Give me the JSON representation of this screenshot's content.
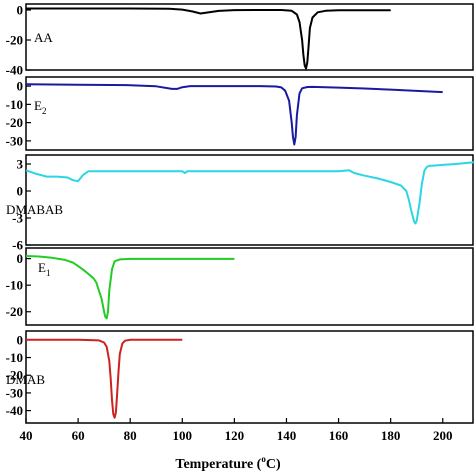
{
  "chart_data": {
    "type": "line",
    "xlabel": "Temperature (",
    "xlabel_sup": "o",
    "xlabel_end": "C)",
    "xlim": [
      40,
      212
    ],
    "x_ticks": [
      40,
      60,
      80,
      100,
      120,
      140,
      160,
      180,
      200
    ],
    "grid": false,
    "panels": [
      {
        "label": "AA",
        "color": "#000000",
        "ylim": [
          -40,
          4
        ],
        "y_ticks": [
          0,
          -20,
          -40
        ],
        "y_tick_labels": [
          "0",
          "-20",
          "-40"
        ],
        "x": [
          40,
          60,
          80,
          95,
          100,
          104,
          107,
          110,
          114,
          120,
          130,
          138,
          142,
          144,
          145,
          146,
          146.5,
          147,
          147.5,
          148,
          148.5,
          149,
          150,
          152,
          155,
          160,
          170,
          180
        ],
        "y": [
          1,
          1,
          1,
          0.8,
          0.3,
          -1,
          -2.3,
          -1.6,
          -0.6,
          -0.1,
          0,
          0,
          -0.5,
          -3,
          -8,
          -20,
          -30,
          -37,
          -39,
          -35,
          -24,
          -12,
          -5,
          -1.5,
          -0.5,
          -0.2,
          -0.2,
          -0.2
        ]
      },
      {
        "label": "E",
        "label_sub": "2",
        "color": "#1a1aa0",
        "ylim": [
          -35,
          5
        ],
        "y_ticks": [
          0,
          -10,
          -20,
          -30
        ],
        "y_tick_labels": [
          "0",
          "-10",
          "-20",
          "-30"
        ],
        "x": [
          40,
          60,
          80,
          90,
          96,
          98,
          100,
          103,
          110,
          120,
          130,
          136,
          138,
          139.5,
          141,
          142,
          142.5,
          143,
          143.5,
          144,
          145,
          146,
          148,
          150,
          160,
          170,
          180,
          190,
          200
        ],
        "y": [
          1,
          0.8,
          0.5,
          -0.1,
          -1.5,
          -1.5,
          -0.6,
          0,
          0,
          0,
          0,
          -0.2,
          -0.7,
          -2.5,
          -8,
          -20,
          -28,
          -32,
          -28,
          -16,
          -4,
          -1.2,
          -0.5,
          -0.4,
          -0.8,
          -1.3,
          -1.9,
          -2.6,
          -3.3
        ]
      },
      {
        "label": "DMABAB",
        "color": "#2ad6e4",
        "ylim": [
          -6,
          4
        ],
        "y_ticks": [
          3,
          0,
          -3,
          -6
        ],
        "y_tick_labels": [
          "3",
          "0",
          "-3",
          "-6"
        ],
        "x": [
          40,
          44,
          48,
          52,
          56,
          58,
          60,
          62,
          64,
          70,
          80,
          90,
          100,
          101,
          102,
          110,
          130,
          150,
          160,
          164,
          166,
          170,
          175,
          180,
          184,
          186,
          187,
          188,
          189,
          189.5,
          190,
          191,
          192,
          193,
          194,
          195,
          196,
          200,
          205,
          212
        ],
        "y": [
          2.3,
          1.9,
          1.6,
          1.6,
          1.5,
          1.2,
          1.1,
          1.8,
          2.2,
          2.2,
          2.2,
          2.2,
          2.2,
          2.0,
          2.2,
          2.2,
          2.2,
          2.2,
          2.2,
          2.3,
          2.0,
          1.7,
          1.4,
          1.0,
          0.6,
          0.0,
          -1.0,
          -2.3,
          -3.4,
          -3.6,
          -3.3,
          -1.5,
          0.8,
          2.3,
          2.7,
          2.8,
          2.8,
          2.9,
          3.0,
          3.2
        ]
      },
      {
        "label": "E",
        "label_sub": "1",
        "color": "#22cc22",
        "ylim": [
          -25,
          4
        ],
        "y_ticks": [
          0,
          -10,
          -20
        ],
        "y_tick_labels": [
          "0",
          "-10",
          "-20"
        ],
        "x": [
          40,
          45,
          50,
          55,
          58,
          60,
          62,
          64,
          66,
          67,
          68,
          69,
          70,
          70.5,
          71,
          71.5,
          72,
          73,
          74,
          76,
          80,
          90,
          100,
          110,
          120
        ],
        "y": [
          1,
          0.8,
          0.3,
          -0.5,
          -1.5,
          -2.8,
          -4.2,
          -5.8,
          -7.5,
          -9,
          -12,
          -15,
          -20,
          -22,
          -22.5,
          -20,
          -12,
          -4,
          -1,
          -0.3,
          -0.1,
          -0.1,
          -0.1,
          -0.1,
          -0.1
        ]
      },
      {
        "label": "DMAB",
        "color": "#cc2222",
        "ylim": [
          -47,
          5
        ],
        "y_ticks": [
          0,
          -10,
          -20,
          -30,
          -40
        ],
        "y_tick_labels": [
          "0",
          "-10",
          "-20",
          "-30",
          "-40"
        ],
        "x": [
          40,
          60,
          68,
          70,
          71,
          72,
          72.5,
          73,
          73.5,
          74,
          74.5,
          75,
          75.5,
          76,
          77,
          78,
          80,
          90,
          100
        ],
        "y": [
          0,
          0,
          -0.3,
          -1.5,
          -4,
          -12,
          -22,
          -34,
          -42,
          -44,
          -41,
          -30,
          -18,
          -8,
          -2,
          -0.5,
          0,
          0,
          0
        ]
      }
    ]
  }
}
